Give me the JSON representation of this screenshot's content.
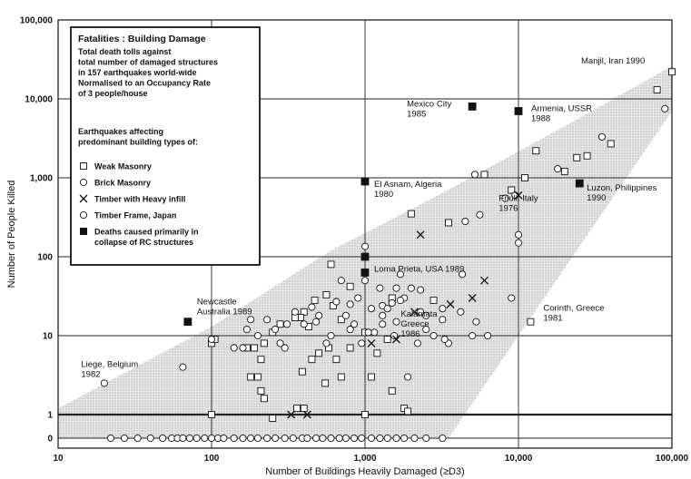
{
  "chart_data": {
    "type": "scatter",
    "xlabel": "Number of Buildings Heavily Damaged (≥D3)",
    "ylabel": "Number of People Killed",
    "x_scale": "log",
    "y_scale": "log (values below 1 plotted on the 0 line)",
    "xlim": [
      10,
      100000
    ],
    "ylim": [
      0,
      100000
    ],
    "x_ticks": [
      "10",
      "100",
      "1,000",
      "10,000",
      "100,000"
    ],
    "y_ticks": [
      "0",
      "1",
      "10",
      "100",
      "1,000",
      "10,000",
      "100,000"
    ],
    "grid": true,
    "reference_line_y": 1,
    "legend_position": "top-left",
    "legend": {
      "title": "Fatalities : Building Damage",
      "description_lines": [
        "Total death tolls against",
        "total number of damaged structures",
        "in 157 earthquakes world-wide",
        "Normalised to an Occupancy Rate",
        "of 3 people/house"
      ],
      "subheading_lines": [
        "Earthquakes affecting",
        "predominant building types of:"
      ],
      "entries": [
        {
          "marker": "open-square",
          "label": "Weak Masonry"
        },
        {
          "marker": "open-circle",
          "label": "Brick Masonry"
        },
        {
          "marker": "cross",
          "label": "Timber with Heavy infill"
        },
        {
          "marker": "open-circle",
          "label": "Timber Frame, Japan"
        },
        {
          "marker": "filled-square",
          "label": "Deaths caused primarily in",
          "label2": "collapse of RC structures"
        }
      ]
    },
    "annotations": [
      {
        "lines": [
          "Manjil, Iran 1990"
        ],
        "x": 100000,
        "y": 22000
      },
      {
        "lines": [
          "Mexico City",
          "1985"
        ],
        "x": 5000,
        "y": 8000
      },
      {
        "lines": [
          "Armenia, USSR",
          "1988"
        ],
        "x": 10000,
        "y": 7000
      },
      {
        "lines": [
          "El Asnam, Algeria",
          "1980"
        ],
        "x": 1000,
        "y": 900
      },
      {
        "lines": [
          "Friuli, Italy",
          "1976"
        ],
        "x": 9000,
        "y": 600
      },
      {
        "lines": [
          "Luzon, Philippines",
          "1990"
        ],
        "x": 25000,
        "y": 850
      },
      {
        "lines": [
          "Loma Prieta, USA 1989"
        ],
        "x": 1000,
        "y": 63
      },
      {
        "lines": [
          "Newcastle",
          "Australia 1989"
        ],
        "x": 70,
        "y": 15
      },
      {
        "lines": [
          "Kalamata",
          "Greece",
          "1986"
        ],
        "x": 1200,
        "y": 10
      },
      {
        "lines": [
          "Corinth, Greece",
          "1981"
        ],
        "x": 12000,
        "y": 15
      },
      {
        "lines": [
          "Liege, Belgium",
          "1982"
        ],
        "x": 65,
        "y": 4
      }
    ],
    "envelope": [
      [
        10,
        1.2
      ],
      [
        10,
        0
      ],
      [
        3500,
        0
      ],
      [
        100000,
        7000
      ],
      [
        100000,
        26000
      ],
      [
        20000,
        4500
      ],
      [
        3000,
        600
      ],
      [
        600,
        120
      ],
      [
        100,
        13
      ]
    ],
    "series": [
      {
        "name": "Weak Masonry",
        "marker": "open-square",
        "points": [
          [
            100000,
            22000
          ],
          [
            80000,
            13000
          ],
          [
            40000,
            2700
          ],
          [
            28000,
            1900
          ],
          [
            24000,
            1800
          ],
          [
            20000,
            1200
          ],
          [
            13000,
            2200
          ],
          [
            11000,
            1000
          ],
          [
            9000,
            700
          ],
          [
            6000,
            1100
          ],
          [
            3500,
            270
          ],
          [
            2000,
            350
          ],
          [
            2800,
            28
          ],
          [
            1500,
            30
          ],
          [
            1400,
            9
          ],
          [
            800,
            42
          ],
          [
            700,
            16
          ],
          [
            650,
            5
          ],
          [
            580,
            7
          ],
          [
            500,
            6
          ],
          [
            450,
            5
          ],
          [
            430,
            13
          ],
          [
            400,
            20
          ],
          [
            390,
            3.5
          ],
          [
            550,
            2.5
          ],
          [
            700,
            3
          ],
          [
            800,
            7
          ],
          [
            1000,
            11
          ],
          [
            1200,
            6
          ],
          [
            1100,
            3
          ],
          [
            1500,
            2
          ],
          [
            1800,
            1.2
          ],
          [
            1900,
            1.1
          ],
          [
            620,
            24
          ],
          [
            560,
            33
          ],
          [
            470,
            28
          ],
          [
            380,
            17
          ],
          [
            350,
            17
          ],
          [
            280,
            14
          ],
          [
            250,
            11
          ],
          [
            220,
            8
          ],
          [
            190,
            7
          ],
          [
            180,
            3
          ],
          [
            170,
            7
          ],
          [
            210,
            5
          ],
          [
            200,
            3
          ],
          [
            210,
            2
          ],
          [
            220,
            1.6
          ],
          [
            250,
            0.9
          ],
          [
            360,
            1.2
          ],
          [
            400,
            1.2
          ],
          [
            100,
            8
          ],
          [
            105,
            9
          ],
          [
            1000,
            1
          ],
          [
            100,
            1
          ],
          [
            12000,
            15
          ],
          [
            600,
            80
          ]
        ]
      },
      {
        "name": "Brick Masonry",
        "marker": "open-circle",
        "points": [
          [
            20,
            2.5
          ],
          [
            65,
            4
          ],
          [
            100,
            9
          ],
          [
            140,
            7
          ],
          [
            160,
            7
          ],
          [
            170,
            12
          ],
          [
            180,
            16
          ],
          [
            200,
            10
          ],
          [
            230,
            16
          ],
          [
            260,
            12
          ],
          [
            280,
            8
          ],
          [
            300,
            7
          ],
          [
            310,
            14
          ],
          [
            350,
            20
          ],
          [
            400,
            14
          ],
          [
            450,
            23
          ],
          [
            480,
            15
          ],
          [
            500,
            18
          ],
          [
            560,
            8
          ],
          [
            600,
            10
          ],
          [
            650,
            27
          ],
          [
            700,
            50
          ],
          [
            750,
            18
          ],
          [
            800,
            12
          ],
          [
            850,
            14
          ],
          [
            900,
            30
          ],
          [
            950,
            8
          ],
          [
            1000,
            135
          ],
          [
            1000,
            100
          ],
          [
            1100,
            22
          ],
          [
            1150,
            11
          ],
          [
            1250,
            40
          ],
          [
            1300,
            24
          ],
          [
            1400,
            22
          ],
          [
            1500,
            26
          ],
          [
            1550,
            10
          ],
          [
            1600,
            40
          ],
          [
            1700,
            60
          ],
          [
            1800,
            30
          ],
          [
            1900,
            3
          ],
          [
            2000,
            40
          ],
          [
            2300,
            20
          ],
          [
            2500,
            18
          ],
          [
            3200,
            22
          ],
          [
            3500,
            8
          ],
          [
            4200,
            20
          ],
          [
            4500,
            280
          ],
          [
            5000,
            10
          ],
          [
            5200,
            1100
          ],
          [
            5600,
            340
          ],
          [
            6300,
            10
          ],
          [
            8200,
            550
          ],
          [
            9000,
            30
          ],
          [
            9500,
            600
          ],
          [
            10000,
            150
          ],
          [
            10000,
            190
          ],
          [
            18000,
            1300
          ],
          [
            35000,
            3300
          ],
          [
            90000,
            7500
          ],
          [
            800,
            25
          ],
          [
            1000,
            50
          ],
          [
            1300,
            14
          ],
          [
            1600,
            15
          ],
          [
            2200,
            8
          ],
          [
            2500,
            12
          ],
          [
            2800,
            10
          ],
          [
            3200,
            16
          ]
        ]
      },
      {
        "name": "Timber with Heavy infill",
        "marker": "cross",
        "points": [
          [
            2300,
            190
          ],
          [
            6000,
            50
          ],
          [
            5000,
            30
          ],
          [
            2100,
            20
          ],
          [
            1600,
            9
          ],
          [
            1100,
            8
          ],
          [
            3600,
            25
          ],
          [
            10000,
            600
          ],
          [
            330,
            1
          ],
          [
            420,
            1
          ]
        ]
      },
      {
        "name": "Timber Frame, Japan",
        "marker": "open-circle",
        "points": [
          [
            4300,
            60
          ],
          [
            5300,
            15
          ],
          [
            3300,
            9
          ],
          [
            1700,
            28
          ],
          [
            1300,
            18
          ],
          [
            1050,
            11
          ],
          [
            2300,
            38
          ]
        ]
      },
      {
        "name": "Deaths caused primarily in collapse of RC structures",
        "marker": "filled-square",
        "points": [
          [
            5000,
            8000
          ],
          [
            10000,
            7000
          ],
          [
            1000,
            900
          ],
          [
            25000,
            850
          ],
          [
            1000,
            63
          ],
          [
            70,
            15
          ],
          [
            1000,
            100
          ]
        ]
      },
      {
        "name": "Zero deaths",
        "marker": "open-circle",
        "points": [
          [
            22,
            0
          ],
          [
            27,
            0
          ],
          [
            33,
            0
          ],
          [
            40,
            0
          ],
          [
            48,
            0
          ],
          [
            55,
            0
          ],
          [
            60,
            0
          ],
          [
            65,
            0
          ],
          [
            72,
            0
          ],
          [
            80,
            0
          ],
          [
            90,
            0
          ],
          [
            100,
            0
          ],
          [
            110,
            0
          ],
          [
            120,
            0
          ],
          [
            140,
            0
          ],
          [
            160,
            0
          ],
          [
            180,
            0
          ],
          [
            200,
            0
          ],
          [
            230,
            0
          ],
          [
            260,
            0
          ],
          [
            300,
            0
          ],
          [
            340,
            0
          ],
          [
            390,
            0
          ],
          [
            420,
            0
          ],
          [
            480,
            0
          ],
          [
            530,
            0
          ],
          [
            600,
            0
          ],
          [
            680,
            0
          ],
          [
            750,
            0
          ],
          [
            850,
            0
          ],
          [
            950,
            0
          ],
          [
            1100,
            0
          ],
          [
            1250,
            0
          ],
          [
            1400,
            0
          ],
          [
            1600,
            0
          ],
          [
            1800,
            0
          ],
          [
            2100,
            0
          ],
          [
            2500,
            0
          ],
          [
            3200,
            0
          ]
        ]
      }
    ]
  }
}
